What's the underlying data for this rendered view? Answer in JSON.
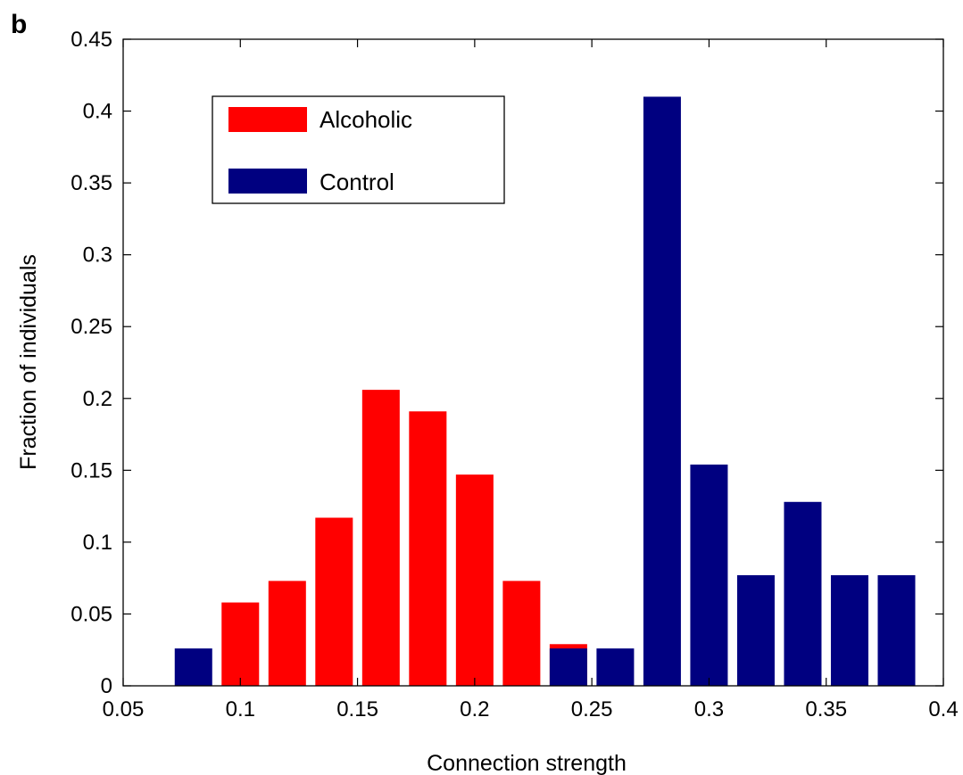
{
  "panel_label": "b",
  "colors": {
    "alcoholic": "#ff0000",
    "control": "#000080"
  },
  "chart_data": {
    "type": "bar",
    "title": "",
    "xlabel": "Connection strength",
    "ylabel": "Fraction of individuals",
    "xlim": [
      0.05,
      0.4
    ],
    "ylim": [
      0,
      0.45
    ],
    "xticks": [
      "0.05",
      "0.1",
      "0.15",
      "0.2",
      "0.25",
      "0.3",
      "0.35",
      "0.4"
    ],
    "yticks": [
      "0",
      "0.05",
      "0.1",
      "0.15",
      "0.2",
      "0.25",
      "0.3",
      "0.35",
      "0.4",
      "0.45"
    ],
    "legend_position": "top-left",
    "grid": false,
    "bar_width": 0.016,
    "series": [
      {
        "name": "Alcoholic",
        "color": "#ff0000",
        "x": [
          0.1,
          0.12,
          0.14,
          0.16,
          0.18,
          0.2,
          0.22,
          0.24
        ],
        "values": [
          0.058,
          0.073,
          0.117,
          0.206,
          0.191,
          0.147,
          0.073,
          0.029
        ]
      },
      {
        "name": "Control",
        "color": "#000080",
        "x": [
          0.08,
          0.24,
          0.26,
          0.28,
          0.3,
          0.32,
          0.34,
          0.36,
          0.38
        ],
        "values": [
          0.026,
          0.026,
          0.026,
          0.41,
          0.154,
          0.077,
          0.128,
          0.077,
          0.077
        ]
      }
    ]
  }
}
